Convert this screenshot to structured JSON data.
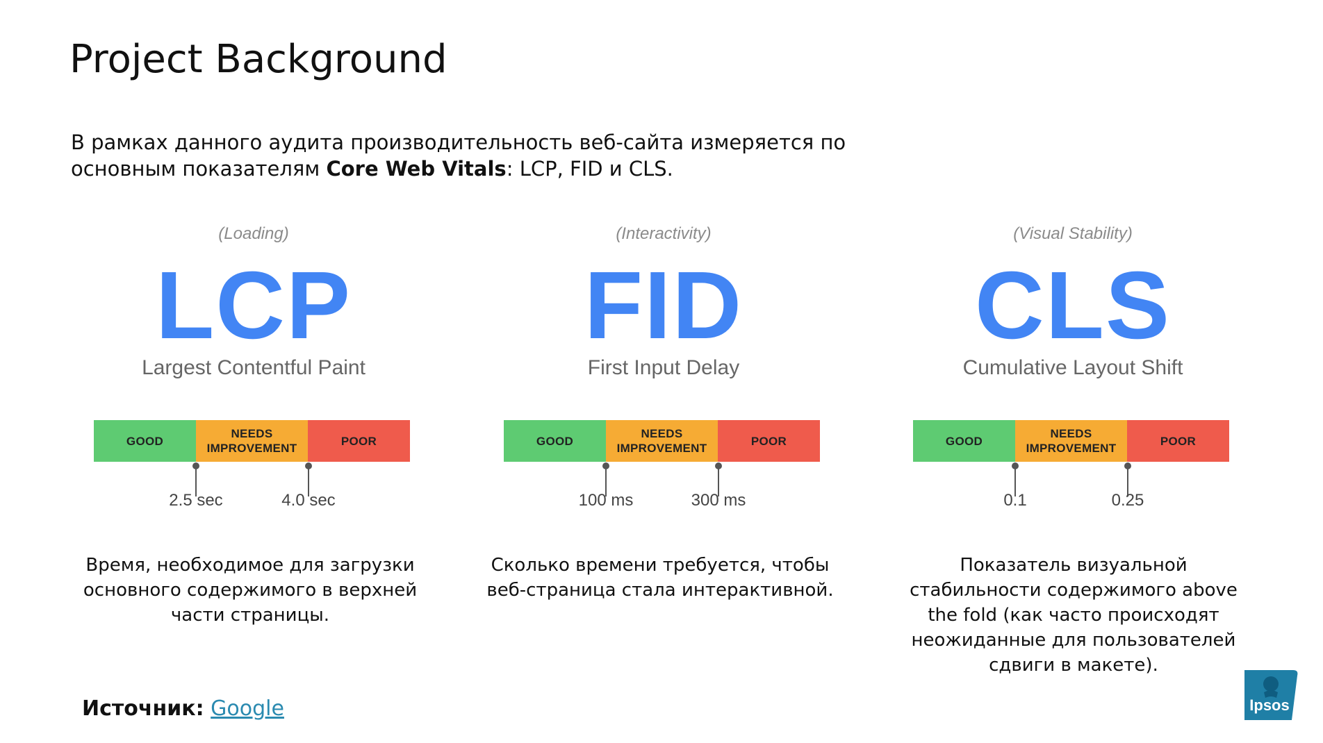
{
  "slide": {
    "title": "Project Background",
    "intro_before": "В рамках данного аудита производительность веб-сайта измеряется по основным показателям ",
    "intro_bold": "Core Web Vitals",
    "intro_after": ": LCP, FID и CLS."
  },
  "colors": {
    "accent": "#4285f4",
    "good": "#5ecb72",
    "needs_improvement": "#f6ab34",
    "poor": "#ef5b4c",
    "link": "#2a8ab0",
    "logo": "#1f7fa6"
  },
  "metrics": [
    {
      "category": "(Loading)",
      "abbr": "LCP",
      "full": "Largest Contentful Paint",
      "good": "GOOD",
      "needs": "NEEDS IMPROVEMENT",
      "poor": "POOR",
      "threshold1": "2.5 sec",
      "threshold2": "4.0 sec",
      "description": "Время, необходимое для загрузки основного содержимого в верхней части страницы."
    },
    {
      "category": "(Interactivity)",
      "abbr": "FID",
      "full": "First Input Delay",
      "good": "GOOD",
      "needs": "NEEDS IMPROVEMENT",
      "poor": "POOR",
      "threshold1": "100 ms",
      "threshold2": "300 ms",
      "description": "Сколько времени требуется, чтобы веб-страница стала интерактивной."
    },
    {
      "category": "(Visual Stability)",
      "abbr": "CLS",
      "full": "Cumulative Layout Shift",
      "good": "GOOD",
      "needs": "NEEDS IMPROVEMENT",
      "poor": "POOR",
      "threshold1": "0.1",
      "threshold2": "0.25",
      "description": "Показатель визуальной стабильности содержимого above the fold (как часто происходят неожиданные для пользователей сдвиги в макете)."
    }
  ],
  "source": {
    "label": "Источник:",
    "link_text": "Google"
  },
  "logo": {
    "text": "Ipsos",
    "icon": "ipsos-logo-icon"
  }
}
